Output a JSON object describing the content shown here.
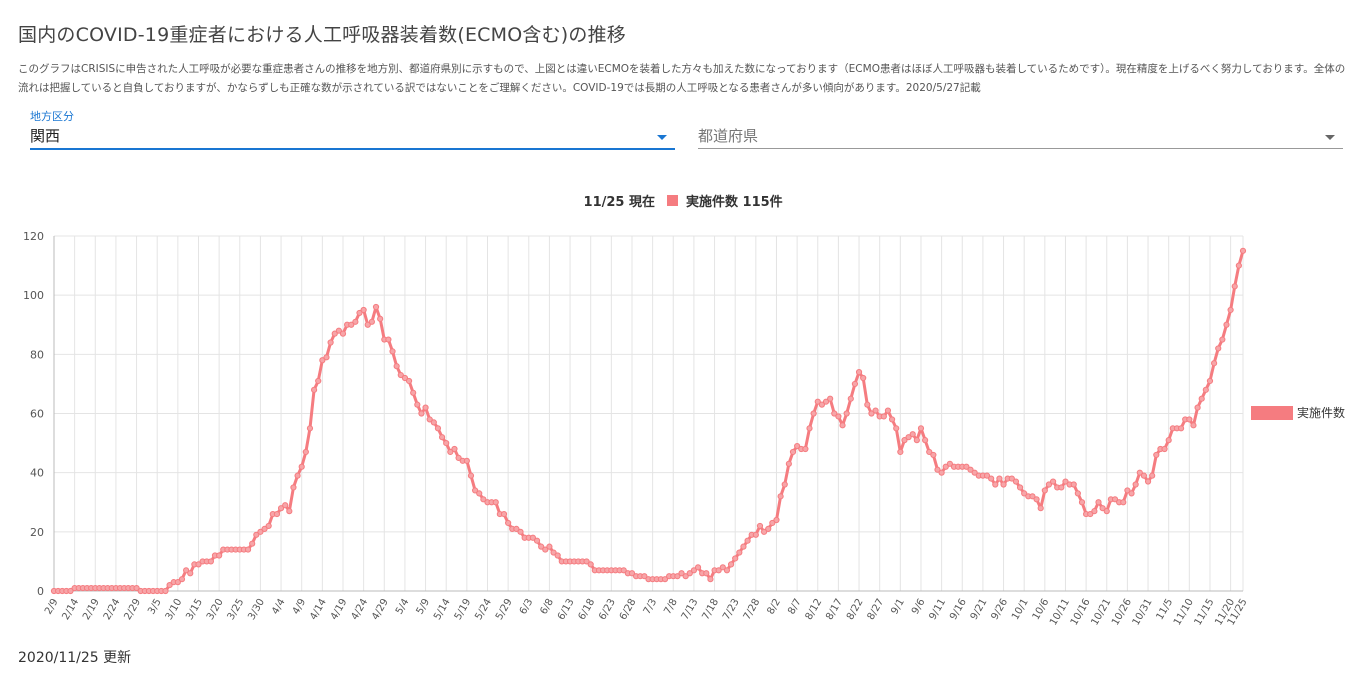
{
  "page": {
    "title": "国内のCOVID-19重症者における人工呼吸器装着数(ECMO含む)の推移",
    "description": "このグラフはCRISISに申告された人工呼吸が必要な重症患者さんの推移を地方別、都道府県別に示すもので、上図とは違いECMOを装着した方々も加えた数になっております（ECMO患者はほぼ人工呼吸器も装着しているためです）。現在精度を上げるべく努力しております。全体の流れは把握していると自負しておりますが、かならずしも正確な数が示されている訳ではないことをご理解ください。COVID-19では長期の人工呼吸となる患者さんが多い傾向があります。2020/5/27記載",
    "updated": "2020/11/25 更新"
  },
  "filters": {
    "region_label": "地方区分",
    "region_value": "関西",
    "prefecture_placeholder": "都道府県"
  },
  "colors": {
    "series": "#f57c80",
    "accent": "#1976d2",
    "grid": "#e4e4e4"
  },
  "chart_data": {
    "type": "line",
    "top_legend": {
      "date": "11/25 現在",
      "text": "実施件数 115件"
    },
    "side_legend": "実施件数",
    "legend_position": "right",
    "grid": true,
    "ylim": [
      0,
      120
    ],
    "yticks": [
      0,
      20,
      40,
      60,
      80,
      100,
      120
    ],
    "x_tick_labels": [
      "2/9",
      "2/14",
      "2/19",
      "2/24",
      "2/29",
      "3/5",
      "3/10",
      "3/15",
      "3/20",
      "3/25",
      "3/30",
      "4/4",
      "4/9",
      "4/14",
      "4/19",
      "4/24",
      "4/29",
      "5/4",
      "5/9",
      "5/14",
      "5/19",
      "5/24",
      "5/29",
      "6/3",
      "6/8",
      "6/13",
      "6/18",
      "6/23",
      "6/28",
      "7/3",
      "7/8",
      "7/13",
      "7/18",
      "7/23",
      "7/28",
      "8/2",
      "8/7",
      "8/12",
      "8/17",
      "8/22",
      "8/27",
      "9/1",
      "9/6",
      "9/11",
      "9/16",
      "9/21",
      "9/26",
      "10/1",
      "10/6",
      "10/11",
      "10/16",
      "10/21",
      "10/26",
      "10/31",
      "11/5",
      "11/10",
      "11/15",
      "11/20",
      "11/25"
    ],
    "start_date": "2/9",
    "end_date": "11/25",
    "series": [
      {
        "name": "実施件数",
        "values": [
          0,
          0,
          0,
          0,
          0,
          1,
          1,
          1,
          1,
          1,
          1,
          1,
          1,
          1,
          1,
          1,
          1,
          1,
          1,
          1,
          1,
          0,
          0,
          0,
          0,
          0,
          0,
          0,
          2,
          3,
          3,
          4,
          7,
          6,
          9,
          9,
          10,
          10,
          10,
          12,
          12,
          14,
          14,
          14,
          14,
          14,
          14,
          14,
          16,
          19,
          20,
          21,
          22,
          26,
          26,
          28,
          29,
          27,
          35,
          39,
          42,
          47,
          55,
          68,
          71,
          78,
          79,
          84,
          87,
          88,
          87,
          90,
          90,
          91,
          94,
          95,
          90,
          91,
          96,
          92,
          85,
          85,
          81,
          76,
          73,
          72,
          71,
          67,
          63,
          60,
          62,
          58,
          57,
          55,
          52,
          50,
          47,
          48,
          45,
          44,
          44,
          39,
          34,
          33,
          31,
          30,
          30,
          30,
          26,
          26,
          23,
          21,
          21,
          20,
          18,
          18,
          18,
          17,
          15,
          14,
          15,
          13,
          12,
          10,
          10,
          10,
          10,
          10,
          10,
          10,
          9,
          7,
          7,
          7,
          7,
          7,
          7,
          7,
          7,
          6,
          6,
          5,
          5,
          5,
          4,
          4,
          4,
          4,
          4,
          5,
          5,
          5,
          6,
          5,
          6,
          7,
          8,
          6,
          6,
          4,
          7,
          7,
          8,
          7,
          9,
          11,
          13,
          15,
          17,
          19,
          19,
          22,
          20,
          21,
          23,
          24,
          32,
          36,
          43,
          47,
          49,
          48,
          48,
          55,
          60,
          64,
          63,
          64,
          65,
          60,
          59,
          56,
          60,
          65,
          70,
          74,
          72,
          63,
          60,
          61,
          59,
          59,
          61,
          58,
          55,
          47,
          51,
          52,
          53,
          51,
          55,
          51,
          47,
          46,
          41,
          40,
          42,
          43,
          42,
          42,
          42,
          42,
          41,
          40,
          39,
          39,
          39,
          38,
          36,
          38,
          36,
          38,
          38,
          37,
          35,
          33,
          32,
          32,
          31,
          28,
          34,
          36,
          37,
          35,
          35,
          37,
          36,
          36,
          33,
          30,
          26,
          26,
          27,
          30,
          28,
          27,
          31,
          31,
          30,
          30,
          34,
          33,
          36,
          40,
          39,
          37,
          39,
          46,
          48,
          48,
          51,
          55,
          55,
          55,
          58,
          58,
          56,
          62,
          65,
          68,
          71,
          77,
          82,
          85,
          90,
          95,
          103,
          110,
          115
        ]
      }
    ]
  }
}
